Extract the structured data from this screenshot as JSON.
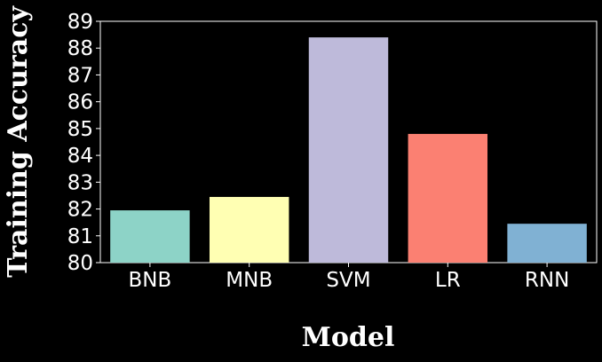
{
  "chart_data": {
    "type": "bar",
    "title": "",
    "xlabel": "Model",
    "ylabel": "Training Accuracy",
    "categories": [
      "BNB",
      "MNB",
      "SVM",
      "LR",
      "RNN"
    ],
    "values": [
      81.95,
      82.45,
      88.4,
      84.8,
      81.45
    ],
    "colors": [
      "#8dd3c7",
      "#ffffb3",
      "#bebada",
      "#fb8072",
      "#80b1d3"
    ],
    "ylim": [
      80,
      89
    ],
    "yticks": [
      "80",
      "81",
      "82",
      "83",
      "84",
      "85",
      "86",
      "87",
      "88",
      "89"
    ],
    "grid": false,
    "background": "#000000",
    "text_color": "#ffffff"
  }
}
